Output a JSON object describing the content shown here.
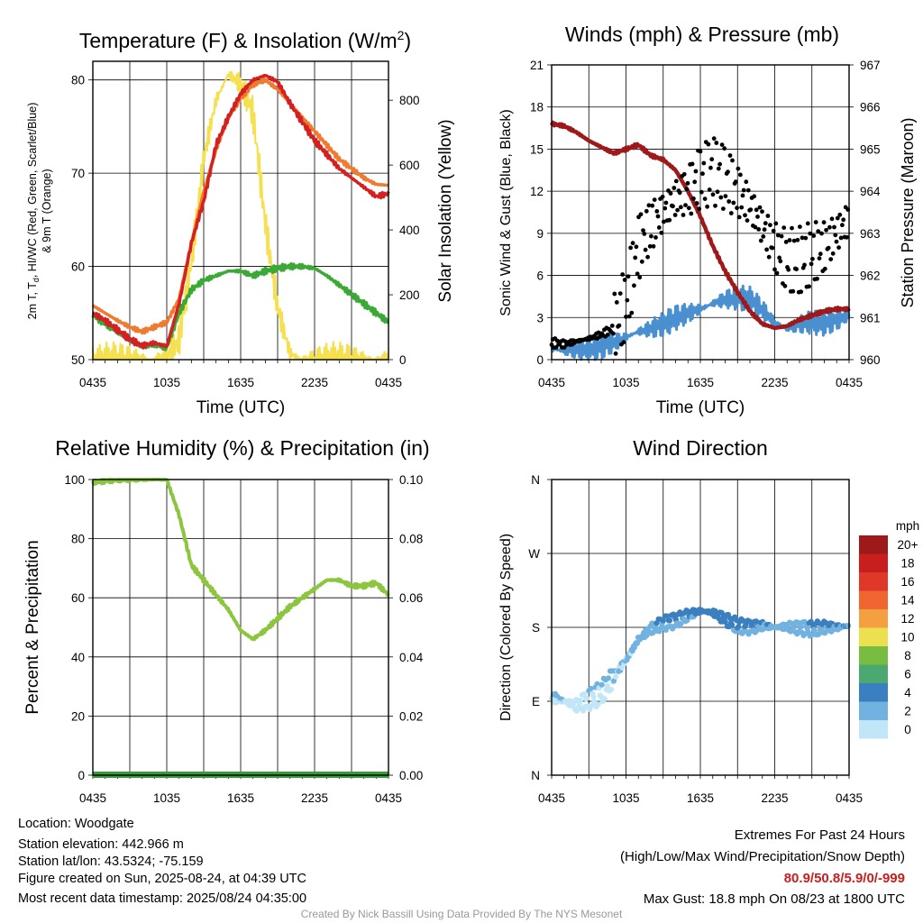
{
  "chart_data": [
    {
      "type": "line",
      "title": "Temperature (F) & Insolation (W/m²)",
      "title_main": "Temperature (F) & Insolation (W/m",
      "title_sup": "2",
      "title_end": ")",
      "xlabel": "Time (UTC)",
      "ylabel_line1": "2m T, T",
      "ylabel_sub": "d",
      "ylabel_line1_rest": ", HI/WC (Red, Green, Scarlet/Blue)",
      "ylabel_line2": "& 9m T (Orange)",
      "y2label": "Solar Insolation (Yellow)",
      "x_ticks": [
        "0435",
        "1035",
        "1635",
        "2235",
        "0435"
      ],
      "y_ticks": [
        50,
        60,
        70,
        80
      ],
      "y2_ticks": [
        0,
        200,
        400,
        600,
        800
      ],
      "ylim": [
        50,
        82
      ],
      "y2lim": [
        0,
        920
      ],
      "hours": [
        0,
        1,
        2,
        3,
        4,
        5,
        6,
        7,
        8,
        9,
        10,
        11,
        12,
        13,
        14,
        15,
        16,
        17,
        18,
        19,
        20,
        21,
        22,
        23,
        24
      ],
      "series": [
        {
          "name": "2m T",
          "axis": "left",
          "color": "#d42020",
          "values": [
            55.0,
            54.2,
            53.2,
            52.2,
            51.5,
            51.8,
            51.4,
            56.0,
            62.5,
            67.0,
            73.0,
            76.0,
            78.5,
            80.0,
            80.5,
            79.8,
            77.5,
            75.5,
            73.5,
            72.0,
            70.5,
            69.5,
            68.5,
            67.5,
            67.8
          ]
        },
        {
          "name": "9m T",
          "axis": "left",
          "color": "#f07a30",
          "values": [
            55.8,
            55.0,
            54.2,
            53.5,
            53.0,
            53.5,
            54.0,
            56.5,
            62.5,
            68.0,
            72.5,
            76.0,
            78.0,
            79.5,
            80.0,
            79.0,
            77.5,
            76.0,
            74.5,
            73.0,
            71.5,
            70.5,
            69.5,
            68.8,
            68.7
          ]
        },
        {
          "name": "Td",
          "axis": "left",
          "color": "#3aaa35",
          "values": [
            54.8,
            53.8,
            53.0,
            52.0,
            51.3,
            51.6,
            51.3,
            55.0,
            57.5,
            58.5,
            59.0,
            59.5,
            59.5,
            59.0,
            59.5,
            59.8,
            60.0,
            60.0,
            59.8,
            59.0,
            58.0,
            57.0,
            56.0,
            55.0,
            54.0
          ]
        },
        {
          "name": "Solar",
          "axis": "right",
          "color": "#f5e050",
          "values": [
            0,
            0,
            0,
            0,
            0,
            0,
            8,
            60,
            300,
            620,
            800,
            880,
            850,
            760,
            420,
            160,
            20,
            0,
            0,
            0,
            0,
            0,
            0,
            0,
            0
          ]
        }
      ]
    },
    {
      "type": "line",
      "title": "Winds (mph) & Pressure (mb)",
      "xlabel": "Time (UTC)",
      "ylabel": "Sonic Wind & Gust (Blue, Black)",
      "y2label": "Station Pressure (Maroon)",
      "x_ticks": [
        "0435",
        "1035",
        "1635",
        "2235",
        "0435"
      ],
      "y_ticks": [
        0,
        3,
        6,
        9,
        12,
        15,
        18,
        21
      ],
      "y2_ticks": [
        960,
        961,
        962,
        963,
        964,
        965,
        966,
        967
      ],
      "ylim": [
        0,
        21
      ],
      "y2lim": [
        960,
        967
      ],
      "hours": [
        0,
        1,
        2,
        3,
        4,
        5,
        6,
        7,
        8,
        9,
        10,
        11,
        12,
        13,
        14,
        15,
        16,
        17,
        18,
        19,
        20,
        21,
        22,
        23,
        24
      ],
      "series": [
        {
          "name": "Sonic Wind",
          "axis": "left",
          "color": "#4a90d0",
          "values": [
            0.8,
            0.6,
            0.7,
            0.8,
            0.9,
            1.2,
            1.6,
            2.0,
            2.2,
            2.5,
            3.0,
            3.3,
            3.6,
            4.0,
            4.3,
            4.4,
            4.3,
            3.6,
            2.6,
            2.2,
            2.5,
            2.7,
            2.6,
            2.8,
            3.2
          ]
        },
        {
          "name": "Gust",
          "axis": "left",
          "color": "#000000",
          "values": [
            1.2,
            1.1,
            1.3,
            1.5,
            1.8,
            2.2,
            4.0,
            8.0,
            9.5,
            10.5,
            11.5,
            12.0,
            13.0,
            13.5,
            13.0,
            12.0,
            11.0,
            9.5,
            8.0,
            7.0,
            7.0,
            7.5,
            8.0,
            9.0,
            10.0
          ]
        },
        {
          "name": "Pressure",
          "axis": "right",
          "color": "#9e1a1a",
          "values": [
            965.6,
            965.55,
            965.4,
            965.2,
            965.05,
            964.9,
            965.0,
            965.1,
            964.85,
            964.75,
            964.5,
            964.0,
            963.4,
            962.7,
            962.1,
            961.6,
            961.15,
            960.85,
            960.75,
            960.8,
            960.95,
            961.05,
            961.15,
            961.2,
            961.2
          ]
        }
      ]
    },
    {
      "type": "line",
      "title": "Relative Humidity (%) & Precipitation (in)",
      "xlabel": "",
      "ylabel": "Percent & Precipitation",
      "x_ticks": [
        "0435",
        "1035",
        "1635",
        "2235",
        "0435"
      ],
      "y_ticks": [
        0,
        20,
        40,
        60,
        80,
        100
      ],
      "y2_ticks": [
        "0.00",
        "0.02",
        "0.04",
        "0.06",
        "0.08",
        "0.10"
      ],
      "ylim": [
        0,
        100
      ],
      "y2lim": [
        0,
        0.1
      ],
      "hours": [
        0,
        1,
        2,
        3,
        4,
        5,
        6,
        7,
        8,
        9,
        10,
        11,
        12,
        13,
        14,
        15,
        16,
        17,
        18,
        19,
        20,
        21,
        22,
        23,
        24
      ],
      "series": [
        {
          "name": "RH",
          "axis": "left",
          "color": "#8cc63f",
          "values": [
            99,
            99.5,
            100,
            100,
            100,
            100,
            100,
            88,
            71,
            66,
            61,
            56,
            49,
            46,
            49,
            53,
            57,
            60,
            63,
            66,
            66,
            64,
            64,
            65,
            61
          ]
        },
        {
          "name": "Precipitation",
          "axis": "right",
          "color": "#3a9a3a",
          "values": [
            0,
            0,
            0,
            0,
            0,
            0,
            0,
            0,
            0,
            0,
            0,
            0,
            0,
            0,
            0,
            0,
            0,
            0,
            0,
            0,
            0,
            0,
            0,
            0,
            0
          ]
        }
      ]
    },
    {
      "type": "scatter",
      "title": "Wind Direction",
      "xlabel": "",
      "ylabel": "Direction (Colored By Speed)",
      "x_ticks": [
        "0435",
        "1035",
        "1635",
        "2235",
        "0435"
      ],
      "y_ticks": [
        "N",
        "E",
        "S",
        "W",
        "N"
      ],
      "ylim": [
        0,
        360
      ],
      "hours": [
        0,
        1,
        2,
        3,
        4,
        5,
        6,
        7,
        8,
        9,
        10,
        11,
        12,
        13,
        14,
        15,
        16,
        17,
        18,
        19,
        20,
        21,
        22,
        23,
        24
      ],
      "direction_deg": [
        95,
        90,
        85,
        92,
        100,
        120,
        140,
        165,
        178,
        185,
        188,
        195,
        200,
        198,
        190,
        182,
        180,
        182,
        180,
        181,
        179,
        178,
        180,
        180,
        182
      ],
      "speed_mph": [
        0.5,
        0.5,
        0.5,
        0.5,
        0.5,
        1,
        1.5,
        2,
        2.5,
        3,
        3,
        3.5,
        4,
        4.5,
        4,
        3.5,
        3,
        2.5,
        2,
        2,
        2,
        2.5,
        2.5,
        2.5,
        3
      ],
      "legend_title": "mph",
      "legend_labels": [
        "20+",
        "18",
        "16",
        "14",
        "12",
        "10",
        "8",
        "6",
        "4",
        "2",
        "0"
      ],
      "legend_colors": [
        "#9e1a1a",
        "#c81e1e",
        "#e03828",
        "#f06530",
        "#f5a040",
        "#ece050",
        "#78bc42",
        "#4aa870",
        "#3a80c0",
        "#72b2e0",
        "#c0e6f8"
      ]
    }
  ],
  "info": {
    "location": "Location: Woodgate",
    "elevation": "Station elevation: 442.966 m",
    "latlon": "Station lat/lon: 43.5324; -75.159",
    "created": "Figure created on Sun, 2025-08-24, at 04:39 UTC",
    "recent": "Most recent data timestamp: 2025/08/24 04:35:00"
  },
  "extremes": {
    "title": "Extremes For Past 24 Hours",
    "subtitle": "(High/Low/Max Wind/Precipitation/Snow Depth)",
    "values": "80.9/50.8/5.9/0/-999",
    "values_color": "#c81e1e",
    "gust": "Max Gust: 18.8 mph On 08/23 at 1800 UTC"
  },
  "credit": "Created By Nick Bassill Using Data Provided By The NYS Mesonet"
}
